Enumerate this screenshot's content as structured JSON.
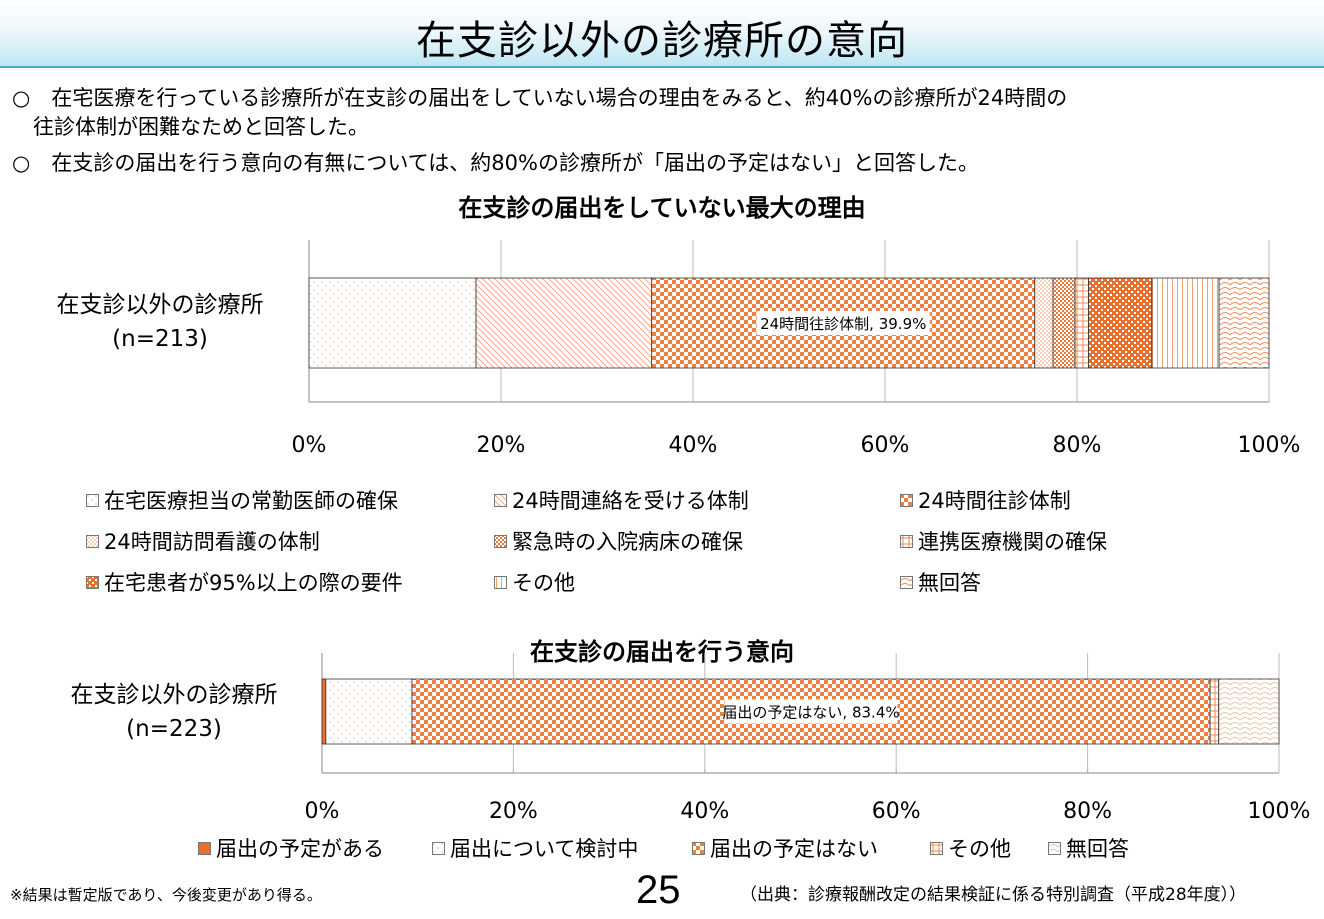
{
  "page": {
    "title": "在支診以外の診療所の意向",
    "bullets": [
      "○　在宅医療を行っている診療所が在支診の届出をしていない場合の理由をみると、約40%の診療所が24時間の",
      "　往診体制が困難なためと回答した。",
      "○　在支診の届出を行う意向の有無については、約80%の診療所が「届出の予定はない」と回答した。"
    ],
    "footnote": "※結果は暫定版であり、今後変更があり得る。",
    "page_number": "25",
    "source": "（出典：診療報酬改定の結果検証に係る特別調査（平成28年度））"
  },
  "chart_data": [
    {
      "type": "bar",
      "orientation": "horizontal",
      "stacked": true,
      "title": "在支診の届出をしていない最大の理由",
      "categories": [
        "在支診以外の診療所"
      ],
      "category_n": "(n=213)",
      "xlim": [
        0,
        100
      ],
      "x_ticks": [
        "0%",
        "20%",
        "40%",
        "60%",
        "80%",
        "100%"
      ],
      "series": [
        {
          "name": "在宅医療担当の常勤医師の確保",
          "values": [
            17.4
          ],
          "color": "#f7a77a",
          "pattern": "dots-sparse"
        },
        {
          "name": "24時間連絡を受ける体制",
          "values": [
            18.3
          ],
          "color": "#f2a27a",
          "pattern": "diagonal"
        },
        {
          "name": "24時間往診体制",
          "values": [
            39.9
          ],
          "color": "#f08040",
          "pattern": "checker"
        },
        {
          "name": "24時間訪問看護の体制",
          "values": [
            1.9
          ],
          "color": "#f29a66",
          "pattern": "dots-dense"
        },
        {
          "name": "緊急時の入院病床の確保",
          "values": [
            2.3
          ],
          "color": "#e87a3a",
          "pattern": "checker-small"
        },
        {
          "name": "連携医療機関の確保",
          "values": [
            1.4
          ],
          "color": "#f08a50",
          "pattern": "grid"
        },
        {
          "name": "在宅患者が95%以上の際の要件",
          "values": [
            6.6
          ],
          "color": "#e8702a",
          "pattern": "checker-dense"
        },
        {
          "name": "その他",
          "values": [
            7.0
          ],
          "color": "#f2a070",
          "pattern": "vertical"
        },
        {
          "name": "無回答",
          "values": [
            5.2
          ],
          "color": "#f09060",
          "pattern": "scales"
        }
      ],
      "data_labels": [
        {
          "series": "24時間往診体制",
          "text": "24時間往診体制, 39.9%"
        }
      ]
    },
    {
      "type": "bar",
      "orientation": "horizontal",
      "stacked": true,
      "title": "在支診の届出を行う意向",
      "categories": [
        "在支診以外の診療所"
      ],
      "category_n": "(n=223)",
      "xlim": [
        0,
        100
      ],
      "x_ticks": [
        "0%",
        "20%",
        "40%",
        "60%",
        "80%",
        "100%"
      ],
      "series": [
        {
          "name": "届出の予定がある",
          "values": [
            0.4
          ],
          "color": "#e8702a",
          "pattern": "solid"
        },
        {
          "name": "届出について検討中",
          "values": [
            9.0
          ],
          "color": "#f7a77a",
          "pattern": "dots-sparse"
        },
        {
          "name": "届出の予定はない",
          "values": [
            83.4
          ],
          "color": "#f08040",
          "pattern": "checker"
        },
        {
          "name": "その他",
          "values": [
            0.9
          ],
          "color": "#f08a50",
          "pattern": "grid"
        },
        {
          "name": "無回答",
          "values": [
            6.3
          ],
          "color": "#e8c8a8",
          "pattern": "scales"
        }
      ],
      "data_labels": [
        {
          "series": "届出の予定はない",
          "text": "届出の予定はない, 83.4%"
        }
      ]
    }
  ]
}
